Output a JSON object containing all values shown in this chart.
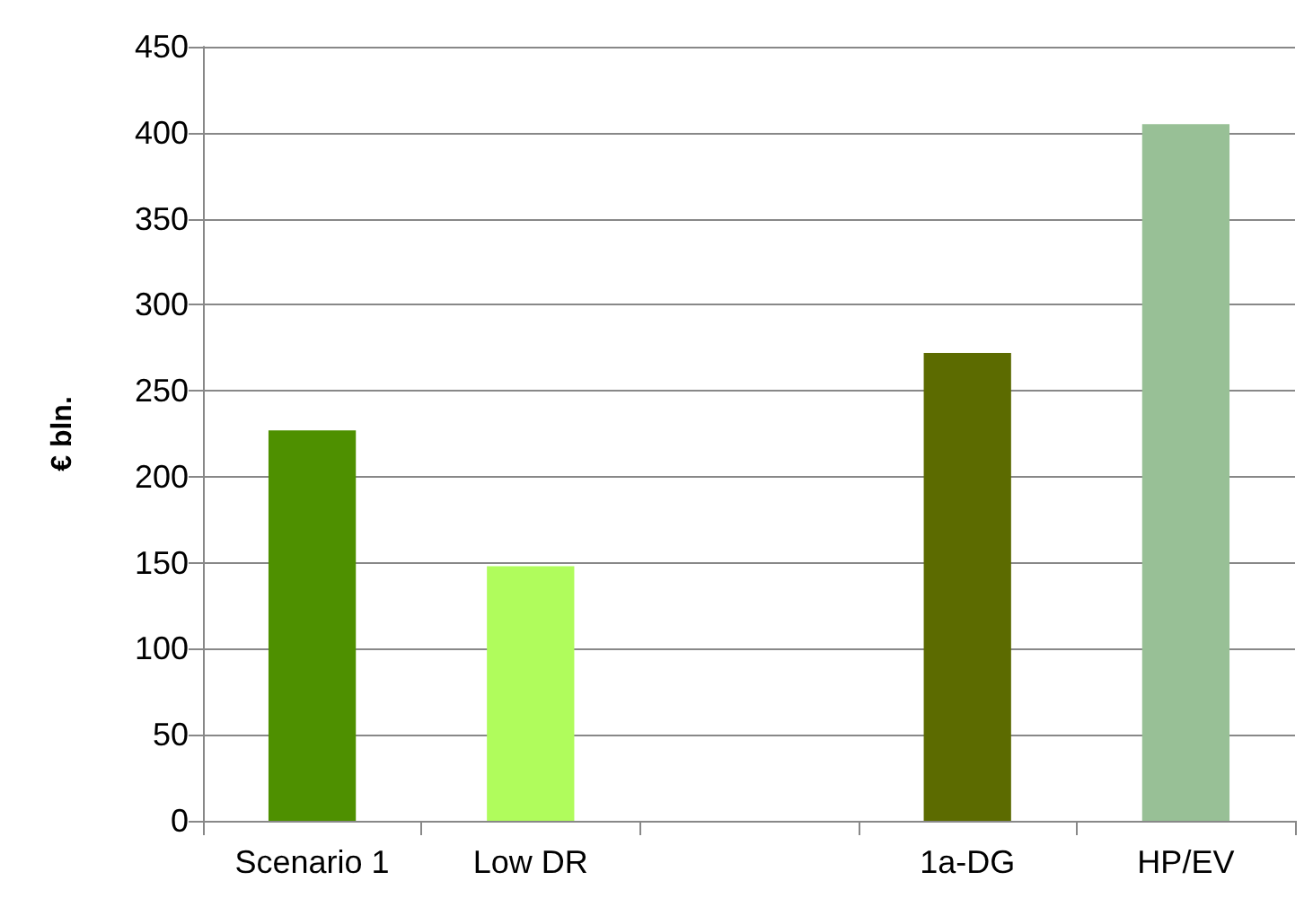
{
  "chart_data": {
    "type": "bar",
    "ylabel": "€ bln.",
    "categories": [
      "Scenario 1",
      "Low DR",
      null,
      "1a-DG",
      "HP/EV"
    ],
    "values": [
      227,
      148,
      null,
      272,
      405
    ],
    "colors": [
      "#4e9000",
      "#b0fc5c",
      null,
      "#5c6b00",
      "#98c096"
    ],
    "ylim": [
      0,
      450
    ],
    "yticks": [
      0,
      50,
      100,
      150,
      200,
      250,
      300,
      350,
      400,
      450
    ],
    "grid": "y"
  }
}
